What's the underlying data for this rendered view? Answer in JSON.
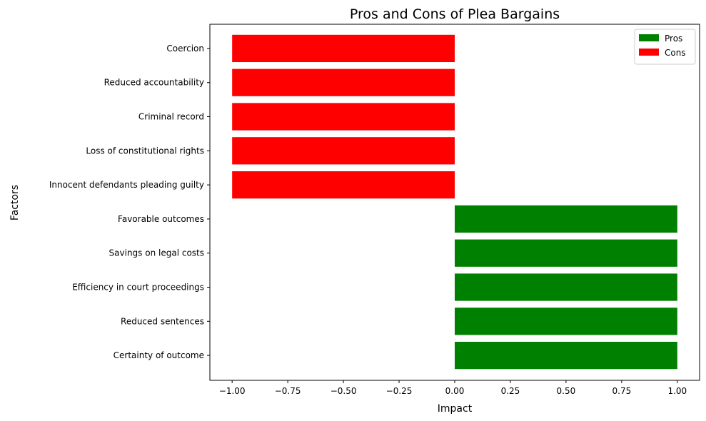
{
  "chart_data": {
    "type": "bar",
    "orientation": "horizontal",
    "title": "Pros and Cons of Plea Bargains",
    "xlabel": "Impact",
    "ylabel": "Factors",
    "xlim": [
      -1.1,
      1.1
    ],
    "xticks": [
      -1.0,
      -0.75,
      -0.5,
      -0.25,
      0.0,
      0.25,
      0.5,
      0.75,
      1.0
    ],
    "xtick_labels": [
      "−1.00",
      "−0.75",
      "−0.50",
      "−0.25",
      "0.00",
      "0.25",
      "0.50",
      "0.75",
      "1.00"
    ],
    "categories": [
      "Certainty of outcome",
      "Reduced sentences",
      "Efficiency in court proceedings",
      "Savings on legal costs",
      "Favorable outcomes",
      "Innocent defendants pleading guilty",
      "Loss of constitutional rights",
      "Criminal record",
      "Reduced accountability",
      "Coercion"
    ],
    "series": [
      {
        "name": "Pros",
        "color": "#008000",
        "values": [
          1,
          1,
          1,
          1,
          1,
          null,
          null,
          null,
          null,
          null
        ]
      },
      {
        "name": "Cons",
        "color": "#ff0000",
        "values": [
          null,
          null,
          null,
          null,
          null,
          -1,
          -1,
          -1,
          -1,
          -1
        ]
      }
    ],
    "legend_position": "top-right",
    "grid": false
  }
}
